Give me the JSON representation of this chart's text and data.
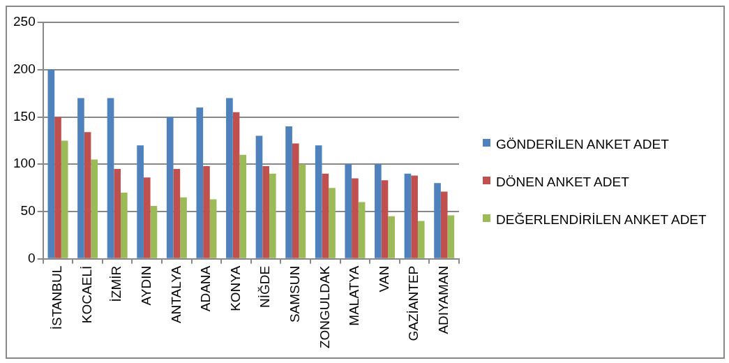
{
  "chart_data": {
    "type": "bar",
    "categories": [
      "İSTANBUL",
      "KOCAELİ",
      "İZMİR",
      "AYDIN",
      "ANTALYA",
      "ADANA",
      "KONYA",
      "NİĞDE",
      "SAMSUN",
      "ZONGULDAK",
      "MALATYA",
      "VAN",
      "GAZİANTEP",
      "ADIYAMAN"
    ],
    "series": [
      {
        "name": "GÖNDERİLEN ANKET ADET",
        "color": "#4f81bd",
        "values": [
          200,
          170,
          170,
          120,
          150,
          160,
          170,
          130,
          140,
          120,
          100,
          100,
          90,
          80
        ]
      },
      {
        "name": "DÖNEN ANKET ADET",
        "color": "#c0504d",
        "values": [
          150,
          134,
          95,
          86,
          95,
          98,
          155,
          98,
          122,
          90,
          85,
          83,
          88,
          71
        ]
      },
      {
        "name": "DEĞERLENDİRİLEN ANKET ADET",
        "color": "#9bbb59",
        "values": [
          125,
          105,
          70,
          56,
          65,
          63,
          110,
          90,
          100,
          75,
          60,
          45,
          40,
          46
        ]
      }
    ],
    "ylim": [
      0,
      250
    ],
    "yticks": [
      0,
      50,
      100,
      150,
      200,
      250
    ],
    "grid": "y",
    "legend": "right"
  }
}
